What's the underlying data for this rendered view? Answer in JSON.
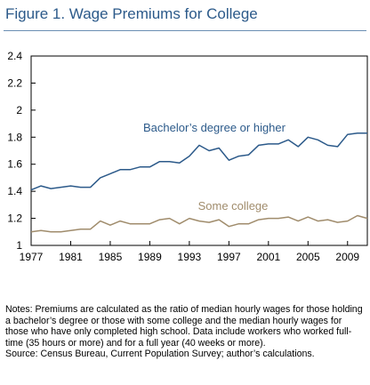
{
  "title": "Figure 1. Wage Premiums for College",
  "notes": {
    "text": "Notes: Premiums are calculated as the ratio of median hourly wages for those holding a bachelor’s degree or those with some college and the median hourly wages for those who have only completed high school. Data include workers who worked full-time (35 hours or more) and for a full year (40 weeks or more).",
    "source": "Source: Census Bureau, Current Population Survey; author’s calculations."
  },
  "colors": {
    "title": "#2c5a8a",
    "bachelor_line": "#2c5a8a",
    "some_college_line": "#a08c6c",
    "axis": "#000000"
  },
  "chart_data": {
    "type": "line",
    "xlim": [
      1977,
      2011
    ],
    "ylim": [
      1,
      2.4
    ],
    "xticks": [
      1977,
      1981,
      1985,
      1989,
      1993,
      1997,
      2001,
      2005,
      2009
    ],
    "yticks": [
      1,
      1.2,
      1.4,
      1.6,
      1.8,
      2,
      2.2,
      2.4
    ],
    "grid": false,
    "x": [
      1977,
      1978,
      1979,
      1980,
      1981,
      1982,
      1983,
      1984,
      1985,
      1986,
      1987,
      1988,
      1989,
      1990,
      1991,
      1992,
      1993,
      1994,
      1995,
      1996,
      1997,
      1998,
      1999,
      2000,
      2001,
      2002,
      2003,
      2004,
      2005,
      2006,
      2007,
      2008,
      2009,
      2010,
      2011
    ],
    "series": [
      {
        "name": "Bachelor’s degree or higher",
        "values": [
          1.41,
          1.44,
          1.42,
          1.43,
          1.44,
          1.43,
          1.43,
          1.5,
          1.53,
          1.56,
          1.56,
          1.58,
          1.58,
          1.62,
          1.62,
          1.61,
          1.66,
          1.74,
          1.7,
          1.72,
          1.63,
          1.66,
          1.67,
          1.74,
          1.75,
          1.75,
          1.78,
          1.73,
          1.8,
          1.78,
          1.74,
          1.73,
          1.82,
          1.83,
          1.83
        ]
      },
      {
        "name": "Some college",
        "values": [
          1.1,
          1.11,
          1.1,
          1.1,
          1.11,
          1.12,
          1.12,
          1.18,
          1.15,
          1.18,
          1.16,
          1.16,
          1.16,
          1.19,
          1.2,
          1.16,
          1.2,
          1.18,
          1.17,
          1.19,
          1.14,
          1.16,
          1.16,
          1.19,
          1.2,
          1.2,
          1.21,
          1.18,
          1.21,
          1.18,
          1.19,
          1.17,
          1.18,
          1.22,
          1.2
        ]
      }
    ]
  }
}
